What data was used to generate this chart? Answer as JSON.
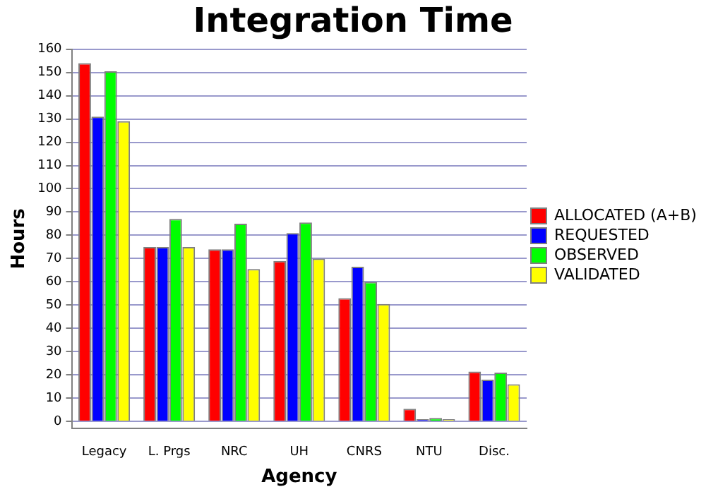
{
  "chart_data": {
    "type": "bar",
    "title": "Integration Time",
    "xlabel": "Agency",
    "ylabel": "Hours",
    "categories": [
      "Legacy",
      "L. Prgs",
      "NRC",
      "UH",
      "CNRS",
      "NTU",
      "Disc."
    ],
    "series": [
      {
        "name": "ALLOCATED (A+B)",
        "color": "#ff0000",
        "values": [
          154,
          75,
          74,
          69,
          53,
          5.5,
          21.5
        ]
      },
      {
        "name": "REQUESTED",
        "color": "#0000ff",
        "values": [
          131,
          75,
          74,
          81,
          66.5,
          1,
          18
        ]
      },
      {
        "name": "OBSERVED",
        "color": "#00ff00",
        "values": [
          150.5,
          87,
          85,
          85.5,
          60,
          1.5,
          21
        ]
      },
      {
        "name": "VALIDATED",
        "color": "#ffff00",
        "values": [
          129,
          75,
          65.5,
          70,
          50.5,
          1,
          16
        ]
      }
    ],
    "ylim": [
      -3,
      160
    ],
    "yticks": [
      0,
      10,
      20,
      30,
      40,
      50,
      60,
      70,
      80,
      90,
      100,
      110,
      120,
      130,
      140,
      150,
      160
    ],
    "grid": "y",
    "legend": "right"
  }
}
